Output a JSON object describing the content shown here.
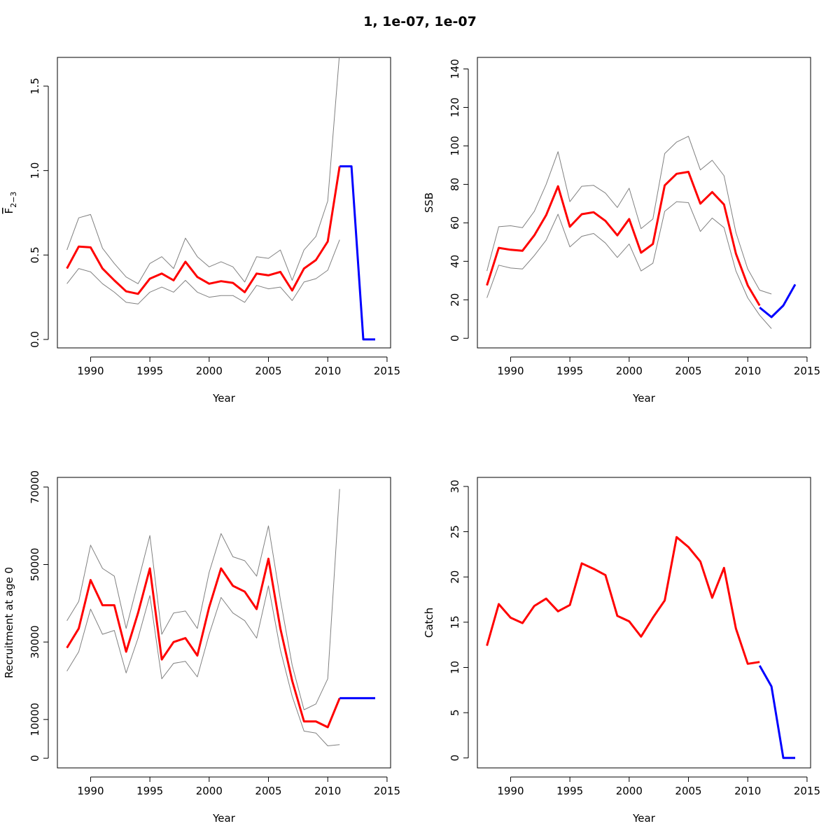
{
  "title": "1, 1e-07, 1e-07",
  "colors": {
    "estimate": "#ff0000",
    "projection": "#0000ff",
    "bounds": "#808080",
    "axis": "#000000"
  },
  "chart_data": [
    {
      "type": "line",
      "xlabel": "Year",
      "ylabel_main": "F",
      "ylabel_sub": "2−3",
      "xlim": [
        1987.2,
        2015.3
      ],
      "ylim": [
        -0.05,
        1.67
      ],
      "xticks": [
        1990,
        1995,
        2000,
        2005,
        2010,
        2015
      ],
      "yticks": [
        0,
        0.5,
        1,
        1.5
      ],
      "yticklabels": [
        "0.0",
        "0.5",
        "1.0",
        "1.5"
      ],
      "series": [
        {
          "role": "lower",
          "x": [
            1988,
            1989,
            1990,
            1991,
            1992,
            1993,
            1994,
            1995,
            1996,
            1997,
            1998,
            1999,
            2000,
            2001,
            2002,
            2003,
            2004,
            2005,
            2006,
            2007,
            2008,
            2009,
            2010,
            2011
          ],
          "y": [
            0.33,
            0.42,
            0.4,
            0.33,
            0.28,
            0.22,
            0.21,
            0.28,
            0.31,
            0.28,
            0.35,
            0.28,
            0.25,
            0.26,
            0.26,
            0.22,
            0.32,
            0.3,
            0.31,
            0.23,
            0.34,
            0.36,
            0.41,
            0.59
          ]
        },
        {
          "role": "upper",
          "x": [
            1988,
            1989,
            1990,
            1991,
            1992,
            1993,
            1994,
            1995,
            1996,
            1997,
            1998,
            1999,
            2000,
            2001,
            2002,
            2003,
            2004,
            2005,
            2006,
            2007,
            2008,
            2009,
            2010,
            2011
          ],
          "y": [
            0.53,
            0.72,
            0.74,
            0.54,
            0.45,
            0.37,
            0.33,
            0.45,
            0.49,
            0.42,
            0.6,
            0.49,
            0.43,
            0.46,
            0.43,
            0.34,
            0.49,
            0.48,
            0.53,
            0.35,
            0.53,
            0.61,
            0.82,
            1.7
          ]
        },
        {
          "role": "estimate",
          "x": [
            1988,
            1989,
            1990,
            1991,
            1992,
            1993,
            1994,
            1995,
            1996,
            1997,
            1998,
            1999,
            2000,
            2001,
            2002,
            2003,
            2004,
            2005,
            2006,
            2007,
            2008,
            2009,
            2010,
            2011
          ],
          "y": [
            0.42,
            0.55,
            0.545,
            0.42,
            0.35,
            0.285,
            0.27,
            0.36,
            0.39,
            0.35,
            0.46,
            0.37,
            0.33,
            0.345,
            0.335,
            0.28,
            0.39,
            0.38,
            0.4,
            0.29,
            0.42,
            0.47,
            0.58,
            1.025
          ]
        },
        {
          "role": "projection",
          "x": [
            2011,
            2012,
            2013,
            2014
          ],
          "y": [
            1.025,
            1.025,
            0.0,
            0.0
          ]
        }
      ]
    },
    {
      "type": "line",
      "xlabel": "Year",
      "ylabel": "SSB",
      "xlim": [
        1987.2,
        2015.3
      ],
      "ylim": [
        -5,
        146
      ],
      "xticks": [
        1990,
        1995,
        2000,
        2005,
        2010,
        2015
      ],
      "yticks": [
        0,
        20,
        40,
        60,
        80,
        100,
        120,
        140
      ],
      "yticklabels": [
        "0",
        "20",
        "40",
        "60",
        "80",
        "100",
        "120",
        "140"
      ],
      "series": [
        {
          "role": "lower",
          "x": [
            1988,
            1989,
            1990,
            1991,
            1992,
            1993,
            1994,
            1995,
            1996,
            1997,
            1998,
            1999,
            2000,
            2001,
            2002,
            2003,
            2004,
            2005,
            2006,
            2007,
            2008,
            2009,
            2010,
            2011,
            2012
          ],
          "y": [
            21,
            38,
            36.5,
            36,
            43,
            51,
            64.5,
            47.5,
            53,
            54.5,
            49.5,
            42,
            49,
            35,
            39,
            66,
            71,
            70.5,
            55.5,
            62.5,
            57.5,
            35,
            21,
            12,
            5
          ]
        },
        {
          "role": "upper",
          "x": [
            1988,
            1989,
            1990,
            1991,
            1992,
            1993,
            1994,
            1995,
            1996,
            1997,
            1998,
            1999,
            2000,
            2001,
            2002,
            2003,
            2004,
            2005,
            2006,
            2007,
            2008,
            2009,
            2010,
            2011,
            2012
          ],
          "y": [
            35,
            58,
            58.5,
            57.5,
            66,
            80,
            97,
            71,
            79,
            79.5,
            75.5,
            68,
            78,
            57,
            62,
            96,
            102,
            105,
            87.5,
            92.5,
            84.5,
            55,
            36,
            25,
            23
          ]
        },
        {
          "role": "estimate",
          "x": [
            1988,
            1989,
            1990,
            1991,
            1992,
            1993,
            1994,
            1995,
            1996,
            1997,
            1998,
            1999,
            2000,
            2001,
            2002,
            2003,
            2004,
            2005,
            2006,
            2007,
            2008,
            2009,
            2010,
            2011
          ],
          "y": [
            27.5,
            47,
            46,
            45.5,
            53.5,
            64,
            79,
            58,
            64.5,
            65.5,
            61,
            53.5,
            62,
            44.5,
            49,
            79.5,
            85.5,
            86.5,
            70,
            76,
            69.5,
            44,
            27.5,
            17
          ]
        },
        {
          "role": "projection",
          "x": [
            2011,
            2012,
            2013,
            2014
          ],
          "y": [
            16,
            11,
            17,
            28
          ]
        }
      ]
    },
    {
      "type": "line",
      "xlabel": "Year",
      "ylabel": "Recruitment at age 0",
      "xlim": [
        1987.2,
        2015.3
      ],
      "ylim": [
        -2500,
        72500
      ],
      "xticks": [
        1990,
        1995,
        2000,
        2005,
        2010,
        2015
      ],
      "yticks": [
        0,
        10000,
        30000,
        50000,
        70000
      ],
      "yticklabels": [
        "0",
        "10000",
        "30000",
        "50000",
        "70000"
      ],
      "series": [
        {
          "role": "lower",
          "x": [
            1988,
            1989,
            1990,
            1991,
            1992,
            1993,
            1994,
            1995,
            1996,
            1997,
            1998,
            1999,
            2000,
            2001,
            2002,
            2003,
            2004,
            2005,
            2006,
            2007,
            2008,
            2009,
            2010,
            2011
          ],
          "y": [
            22500,
            27500,
            38500,
            32000,
            33000,
            22000,
            31000,
            42000,
            20500,
            24500,
            25000,
            21000,
            32000,
            41500,
            37500,
            35500,
            31000,
            44500,
            28000,
            16000,
            7000,
            6500,
            3200,
            3500
          ]
        },
        {
          "role": "upper",
          "x": [
            1988,
            1989,
            1990,
            1991,
            1992,
            1993,
            1994,
            1995,
            1996,
            1997,
            1998,
            1999,
            2000,
            2001,
            2002,
            2003,
            2004,
            2005,
            2006,
            2007,
            2008,
            2009,
            2010,
            2011
          ],
          "y": [
            35500,
            40500,
            55000,
            49000,
            47000,
            33500,
            45500,
            57500,
            32000,
            37500,
            38000,
            33500,
            48000,
            58000,
            52000,
            51000,
            47000,
            60000,
            41000,
            24000,
            12500,
            14000,
            20500,
            69500
          ]
        },
        {
          "role": "estimate",
          "x": [
            1988,
            1989,
            1990,
            1991,
            1992,
            1993,
            1994,
            1995,
            1996,
            1997,
            1998,
            1999,
            2000,
            2001,
            2002,
            2003,
            2004,
            2005,
            2006,
            2007,
            2008,
            2009,
            2010,
            2011
          ],
          "y": [
            28500,
            33500,
            46000,
            39500,
            39500,
            27500,
            37500,
            49000,
            25500,
            30000,
            31000,
            26500,
            39000,
            49000,
            44500,
            43000,
            38500,
            51500,
            33500,
            20000,
            9500,
            9500,
            8000,
            15500
          ]
        },
        {
          "role": "projection",
          "x": [
            2011,
            2012,
            2013,
            2014
          ],
          "y": [
            15500,
            15500,
            15500,
            15500
          ]
        }
      ]
    },
    {
      "type": "line",
      "xlabel": "Year",
      "ylabel": "Catch",
      "xlim": [
        1987.2,
        2015.3
      ],
      "ylim": [
        -1.1,
        31
      ],
      "xticks": [
        1990,
        1995,
        2000,
        2005,
        2010,
        2015
      ],
      "yticks": [
        0,
        5,
        10,
        15,
        20,
        25,
        30
      ],
      "yticklabels": [
        "0",
        "5",
        "10",
        "15",
        "20",
        "25",
        "30"
      ],
      "series": [
        {
          "role": "estimate",
          "x": [
            1988,
            1989,
            1990,
            1991,
            1992,
            1993,
            1994,
            1995,
            1996,
            1997,
            1998,
            1999,
            2000,
            2001,
            2002,
            2003,
            2004,
            2005,
            2006,
            2007,
            2008,
            2009,
            2010,
            2011
          ],
          "y": [
            12.4,
            17.0,
            15.5,
            14.9,
            16.8,
            17.6,
            16.2,
            16.9,
            21.5,
            20.9,
            20.2,
            15.7,
            15.1,
            13.4,
            15.5,
            17.4,
            24.4,
            23.3,
            21.7,
            17.7,
            21.0,
            14.3,
            10.4,
            10.6
          ]
        },
        {
          "role": "projection",
          "x": [
            2011,
            2012,
            2013,
            2014
          ],
          "y": [
            10.2,
            7.9,
            0.0,
            0.0
          ]
        }
      ]
    }
  ]
}
